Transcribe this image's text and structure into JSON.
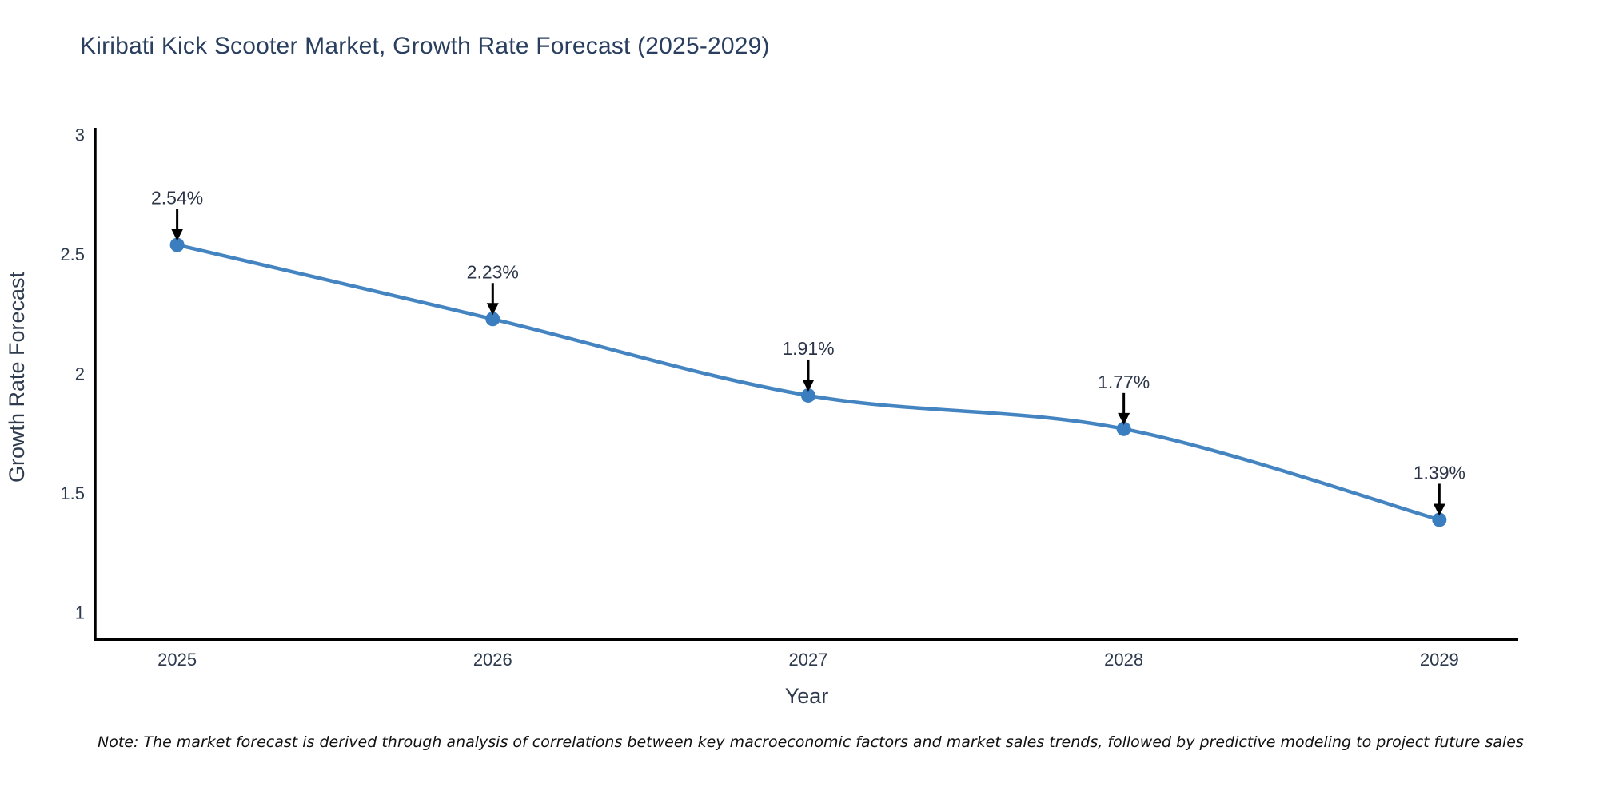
{
  "header": {
    "title": "Kiribati Kick Scooter Market, Growth Rate Forecast (2025-2029)"
  },
  "footnote": {
    "text": "Note: The market forecast is derived through analysis of correlations between key macroeconomic factors and market sales trends, followed by predictive modeling to project future sales"
  },
  "colors": {
    "line": "#4484c1",
    "marker": "#3a7ebf",
    "axis": "#000000",
    "chart_text": "#2e3b4f",
    "annotation_text": "#2c3648",
    "annotation_arrow": "#000000",
    "title_text": "#2a3f5f"
  },
  "chart_data": {
    "type": "line",
    "title": "Kiribati Kick Scooter Market, Growth Rate Forecast (2025-2029)",
    "xlabel": "Year",
    "ylabel": "Growth Rate Forecast",
    "categories": [
      "2025",
      "2026",
      "2027",
      "2028",
      "2029"
    ],
    "x": [
      2025,
      2026,
      2027,
      2028,
      2029
    ],
    "values": [
      2.54,
      2.23,
      1.91,
      1.77,
      1.39
    ],
    "point_labels": [
      "2.54%",
      "2.23%",
      "1.91%",
      "1.77%",
      "1.39%"
    ],
    "yticks": [
      3,
      2.5,
      2,
      1.5,
      1
    ],
    "ytick_labels": [
      "3",
      "2.5",
      "2",
      "1.5",
      "1"
    ],
    "xlim": [
      2024.74,
      2029.25
    ],
    "ylim": [
      0.89,
      3.03
    ],
    "line_shape": "spline",
    "markers": true,
    "grid": false,
    "legend_position": "none",
    "annotation_style": "black arrow pointing down from each percent label to its data point"
  }
}
